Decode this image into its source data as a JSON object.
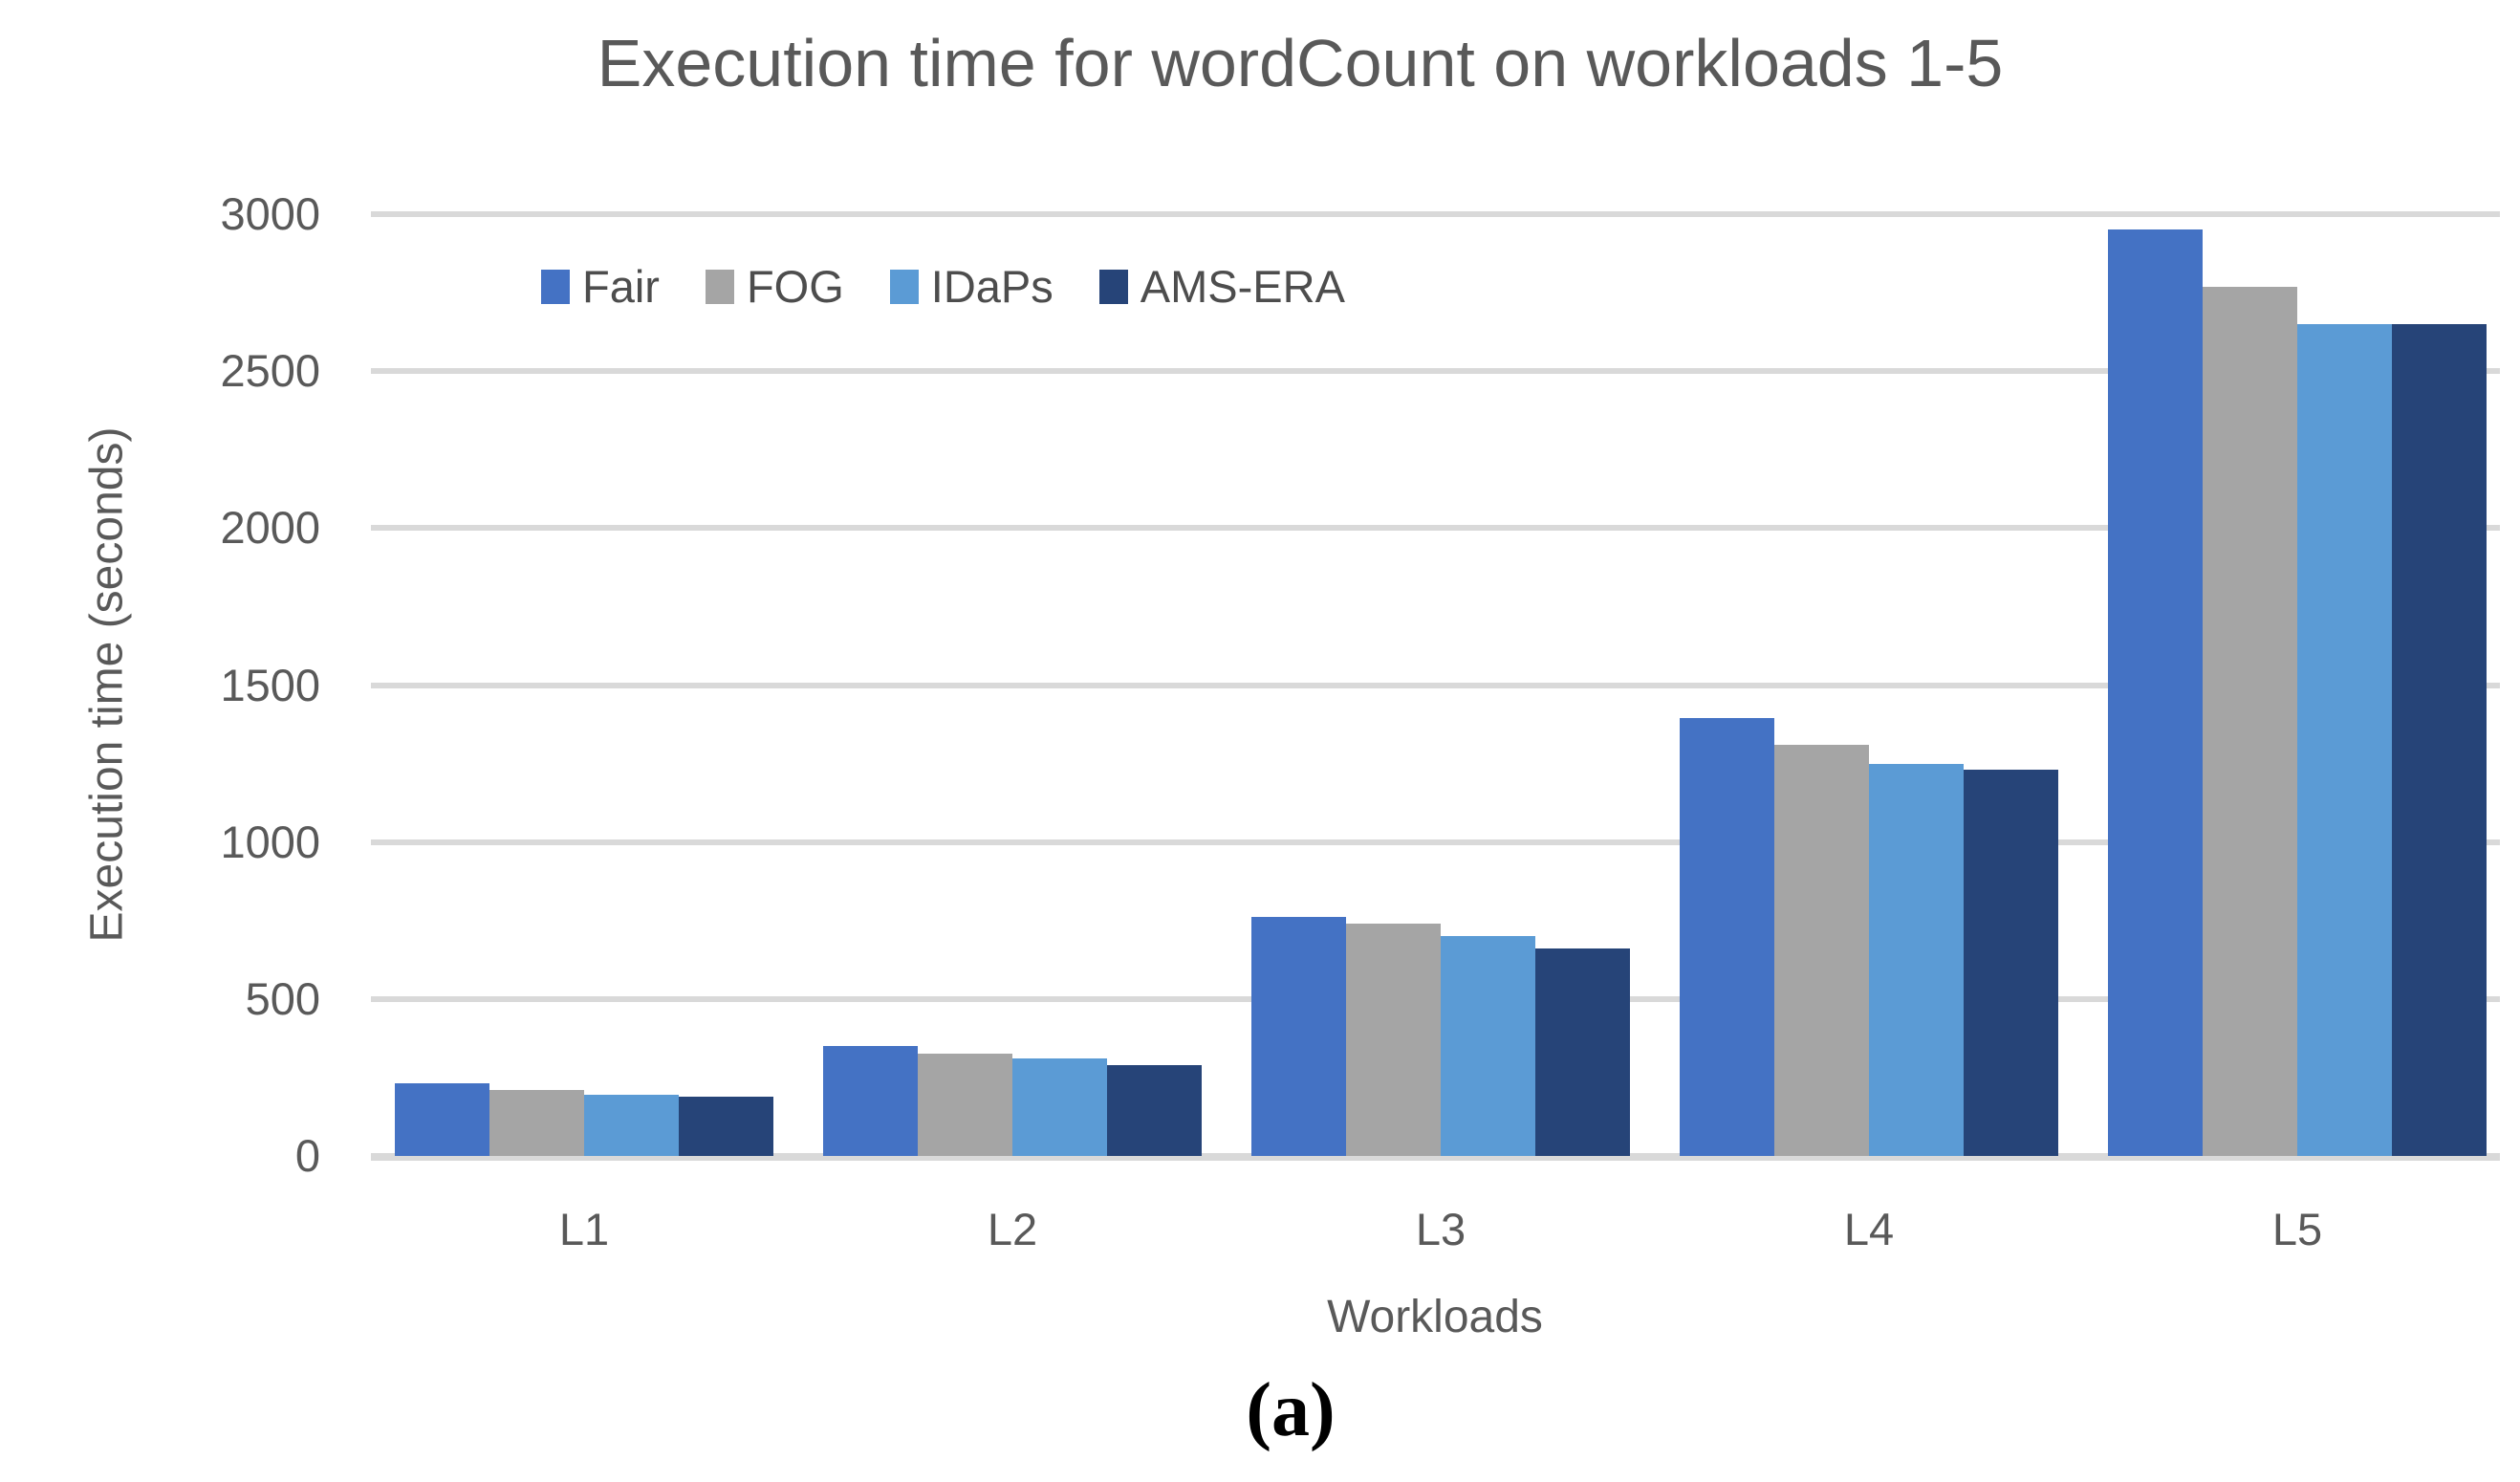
{
  "page": {
    "caption": "(a)"
  },
  "chart_data": {
    "type": "bar",
    "title": "Execution time for wordCount on workloads 1-5",
    "xlabel": "Workloads",
    "ylabel": "Execution time (seconds)",
    "categories": [
      "L1",
      "L2",
      "L3",
      "L4",
      "L5"
    ],
    "series": [
      {
        "name": "Fair",
        "color": "#4472C4",
        "values": [
          230,
          350,
          760,
          1395,
          2950
        ]
      },
      {
        "name": "FOG",
        "color": "#A5A5A5",
        "values": [
          210,
          325,
          740,
          1310,
          2770
        ]
      },
      {
        "name": "IDaPs",
        "color": "#5B9BD5",
        "values": [
          195,
          310,
          700,
          1250,
          2650
        ]
      },
      {
        "name": "AMS-ERA",
        "color": "#264478",
        "values": [
          190,
          290,
          660,
          1230,
          2650
        ]
      }
    ],
    "ylim": [
      0,
      3000
    ],
    "yticks": [
      0,
      500,
      1000,
      1500,
      2000,
      2500,
      3000
    ],
    "grid": "horizontal",
    "gridline_color": "#D9D9D9",
    "text_color": "#595959",
    "legend_position": "top-left-inside"
  }
}
